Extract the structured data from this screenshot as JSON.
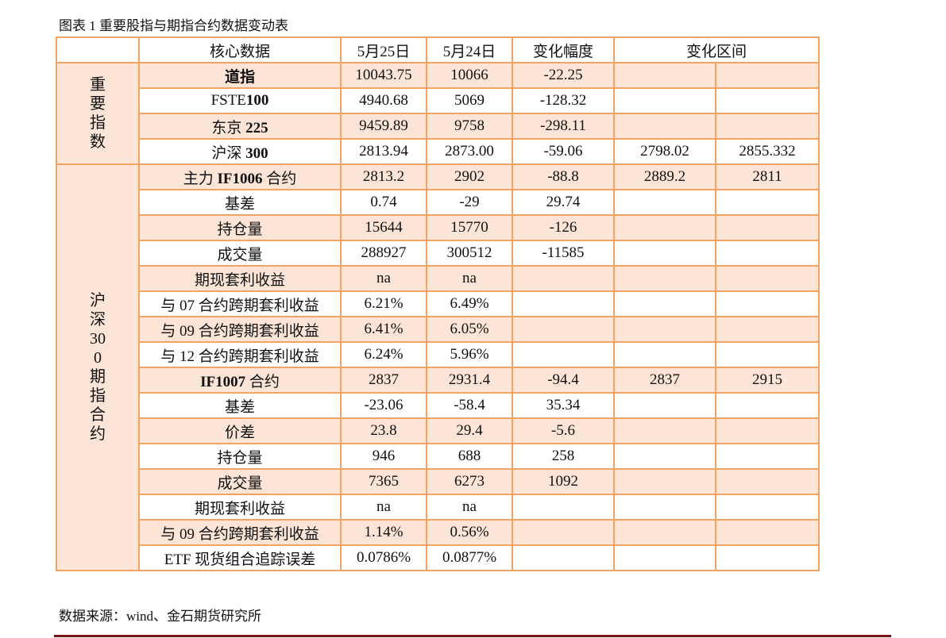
{
  "caption": "图表 1 重要股指与期指合约数据变动表",
  "header": [
    "",
    "核心数据",
    "5月25日",
    "5月24日",
    "变化幅度",
    "变化区间"
  ],
  "groups": [
    {
      "label": "重要指数",
      "rows": [
        {
          "name": "道指",
          "bold": true,
          "v": [
            "10043.75",
            "10066",
            "-22.25",
            "",
            ""
          ]
        },
        {
          "name_plain": "FSTE",
          "name_bold": "100",
          "v": [
            "4940.68",
            "5069",
            "-128.32",
            "",
            ""
          ]
        },
        {
          "name_plain": "东京 ",
          "name_bold": "225",
          "v": [
            "9459.89",
            "9758",
            "-298.11",
            "",
            ""
          ]
        },
        {
          "name_plain": "沪深 ",
          "name_bold": "300",
          "v": [
            "2813.94",
            "2873.00",
            "-59.06",
            "2798.02",
            "2855.332"
          ]
        }
      ]
    },
    {
      "label": "沪深300期指合约",
      "rows": [
        {
          "name_plain": "主力 ",
          "name_bold": "IF1006",
          "name_tail": " 合约",
          "v": [
            "2813.2",
            "2902",
            "-88.8",
            "2889.2",
            "2811"
          ]
        },
        {
          "name": "基差",
          "v": [
            "0.74",
            "-29",
            "29.74",
            "",
            ""
          ]
        },
        {
          "name": "持仓量",
          "v": [
            "15644",
            "15770",
            "-126",
            "",
            ""
          ]
        },
        {
          "name": "成交量",
          "v": [
            "288927",
            "300512",
            "-11585",
            "",
            ""
          ]
        },
        {
          "name": "期现套利收益",
          "v": [
            "na",
            "na",
            "",
            "",
            ""
          ]
        },
        {
          "name": "与 07 合约跨期套利收益",
          "v": [
            "6.21%",
            "6.49%",
            "",
            "",
            ""
          ]
        },
        {
          "name": "与 09 合约跨期套利收益",
          "v": [
            "6.41%",
            "6.05%",
            "",
            "",
            ""
          ]
        },
        {
          "name": "与 12 合约跨期套利收益",
          "v": [
            "6.24%",
            "5.96%",
            "",
            "",
            ""
          ]
        },
        {
          "name_bold": "IF1007",
          "name_tail": " 合约",
          "v": [
            "2837",
            "2931.4",
            "-94.4",
            "2837",
            "2915"
          ]
        },
        {
          "name": "基差",
          "v": [
            "-23.06",
            "-58.4",
            "35.34",
            "",
            ""
          ]
        },
        {
          "name": "价差",
          "v": [
            "23.8",
            "29.4",
            "-5.6",
            "",
            ""
          ]
        },
        {
          "name": "持仓量",
          "v": [
            "946",
            "688",
            "258",
            "",
            ""
          ]
        },
        {
          "name": "成交量",
          "v": [
            "7365",
            "6273",
            "1092",
            "",
            ""
          ]
        },
        {
          "name": "期现套利收益",
          "v": [
            "na",
            "na",
            "",
            "",
            ""
          ]
        },
        {
          "name": "与 09 合约跨期套利收益",
          "v": [
            "1.14%",
            "0.56%",
            "",
            "",
            ""
          ]
        },
        {
          "name": "ETF 现货组合追踪误差",
          "v": [
            "0.0786%",
            "0.0877%",
            "",
            "",
            ""
          ]
        }
      ]
    }
  ],
  "source": "数据来源：wind、金石期货研究所",
  "colors": {
    "shade": "#fce4d6",
    "border": "#f4a460",
    "rule": "#7a1416"
  }
}
